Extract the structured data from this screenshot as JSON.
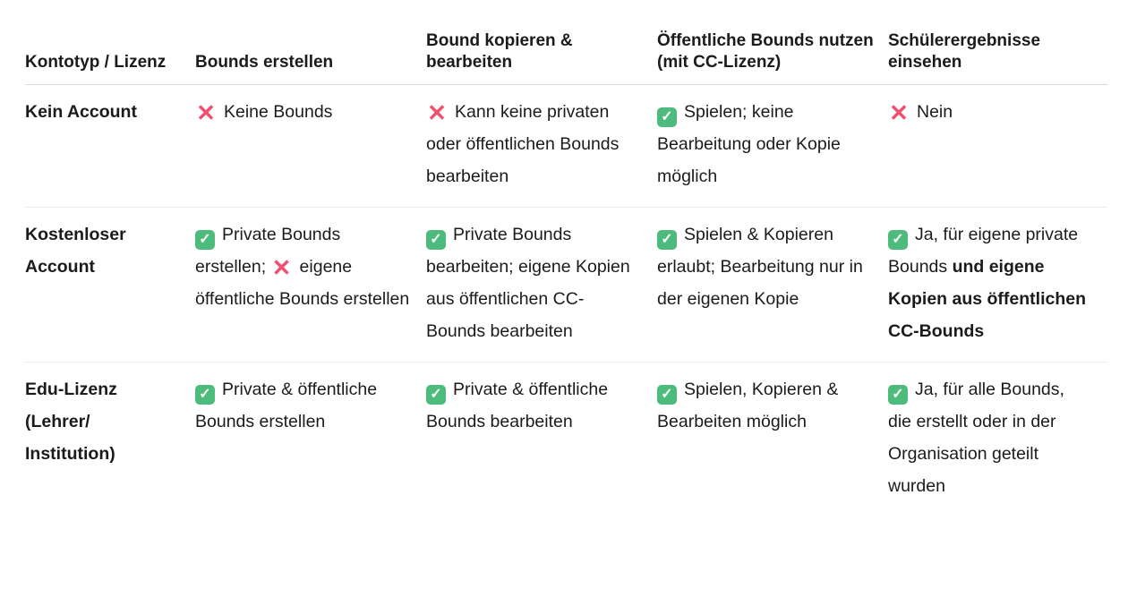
{
  "headers": [
    "Kontotyp / Lizenz",
    "Bounds erstellen",
    "Bound kopieren & bearbeiten",
    "Öffentliche Bounds nutzen (mit CC-Lizenz)",
    "Schülerergebnisse einsehen"
  ],
  "icons": {
    "check": "check-mark-button-icon",
    "cross": "cross-mark-icon"
  },
  "colors": {
    "check": "#4cbb7c",
    "cross": "#f0506e"
  },
  "rows": [
    {
      "label": "Kein Account",
      "cells": [
        [
          {
            "icon": "cross",
            "text": "Keine Bounds"
          }
        ],
        [
          {
            "icon": "cross",
            "text": "Kann keine privaten oder öffentlichen Bounds bearbeiten"
          }
        ],
        [
          {
            "icon": "check",
            "text": "Spielen; keine Bearbeitung oder Kopie möglich"
          }
        ],
        [
          {
            "icon": "cross",
            "text": "Nein"
          }
        ]
      ]
    },
    {
      "label": "Kostenloser Account",
      "cells": [
        [
          {
            "icon": "check",
            "text": "Private Bounds erstellen; "
          },
          {
            "icon": "cross",
            "text": "eigene öffentliche Bounds erstellen"
          }
        ],
        [
          {
            "icon": "check",
            "text": "Private Bounds bearbeiten; eigene Kopien aus öffentlichen CC-Bounds bearbeiten"
          }
        ],
        [
          {
            "icon": "check",
            "text": "Spielen & Kopieren erlaubt; Bearbeitung nur in der eigenen Kopie"
          }
        ],
        [
          {
            "icon": "check",
            "text": "Ja, für eigene private Bounds "
          },
          {
            "bold": true,
            "text": "und eigene Kopien aus öffentlichen CC-Bounds"
          }
        ]
      ]
    },
    {
      "label": "Edu-Lizenz (Lehrer/ Institution)",
      "cells": [
        [
          {
            "icon": "check",
            "text": "Private & öffentliche Bounds erstellen"
          }
        ],
        [
          {
            "icon": "check",
            "text": "Private & öffentliche Bounds bearbeiten"
          }
        ],
        [
          {
            "icon": "check",
            "text": "Spielen, Kopieren & Bearbeiten möglich"
          }
        ],
        [
          {
            "icon": "check",
            "text": "Ja, für alle Bounds, die erstellt oder in der Organisation geteilt wurden"
          }
        ]
      ]
    }
  ]
}
